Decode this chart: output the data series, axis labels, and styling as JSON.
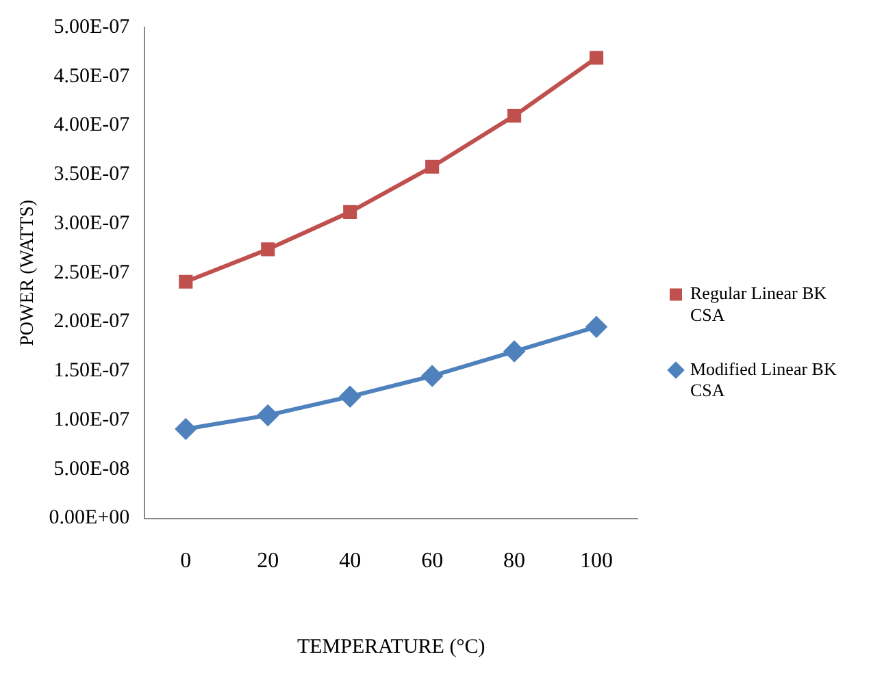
{
  "chart_data": {
    "type": "line",
    "xlabel": "TEMPERATURE (°C)",
    "ylabel": "POWER (WATTS)",
    "categories": [
      "0",
      "20",
      "40",
      "60",
      "80",
      "100"
    ],
    "series": [
      {
        "name": "Regular Linear BK CSA",
        "color": "#c0504d",
        "marker": "square",
        "values": [
          2.41e-07,
          2.74e-07,
          3.12e-07,
          3.58e-07,
          4.1e-07,
          4.69e-07
        ]
      },
      {
        "name": "Modified Linear BK CSA",
        "color": "#4f81bd",
        "marker": "diamond",
        "values": [
          9.1e-08,
          1.05e-07,
          1.24e-07,
          1.45e-07,
          1.7e-07,
          1.95e-07
        ]
      }
    ],
    "ylim": [
      0,
      5e-07
    ],
    "yticks": [
      {
        "value": 0,
        "label": "0.00E+00"
      },
      {
        "value": 5e-08,
        "label": "5.00E-08"
      },
      {
        "value": 1e-07,
        "label": "1.00E-07"
      },
      {
        "value": 1.5e-07,
        "label": "1.50E-07"
      },
      {
        "value": 2e-07,
        "label": "2.00E-07"
      },
      {
        "value": 2.5e-07,
        "label": "2.50E-07"
      },
      {
        "value": 3e-07,
        "label": "3.00E-07"
      },
      {
        "value": 3.5e-07,
        "label": "3.50E-07"
      },
      {
        "value": 4e-07,
        "label": "4.00E-07"
      },
      {
        "value": 4.5e-07,
        "label": "4.50E-07"
      },
      {
        "value": 5e-07,
        "label": "5.00E-07"
      }
    ],
    "grid": false,
    "legend": "right",
    "line_style": "solid"
  }
}
